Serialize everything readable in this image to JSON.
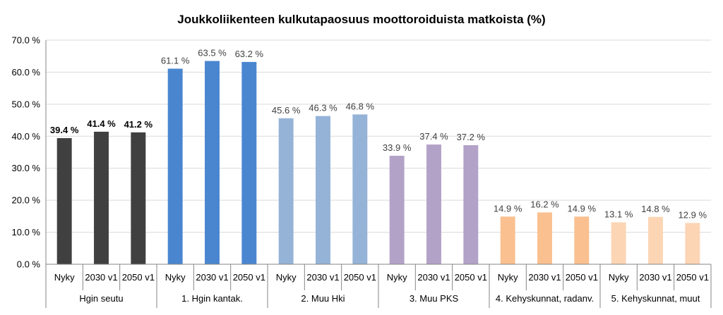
{
  "chart_data": {
    "type": "bar",
    "title": "Joukkoliikenteen kulkutapaosuus moottoroiduista matkoista (%)",
    "xlabel": "",
    "ylabel": "",
    "ylim": [
      0,
      70
    ],
    "yticks": [
      "0.0 %",
      "10.0 %",
      "20.0 %",
      "30.0 %",
      "40.0 %",
      "50.0 %",
      "60.0 %",
      "70.0 %"
    ],
    "grid": true,
    "legend": "none",
    "groups": [
      {
        "name": "Hgin seutu",
        "color": "#404040",
        "bold_labels": true,
        "bars": [
          {
            "category": "Nyky",
            "value": 39.4,
            "label": "39.4 %"
          },
          {
            "category": "2030 v1",
            "value": 41.4,
            "label": "41.4 %"
          },
          {
            "category": "2050 v1",
            "value": 41.2,
            "label": "41.2 %"
          }
        ]
      },
      {
        "name": "1. Hgin kantak.",
        "color": "#4a86d0",
        "bold_labels": false,
        "bars": [
          {
            "category": "Nyky",
            "value": 61.1,
            "label": "61.1 %"
          },
          {
            "category": "2030 v1",
            "value": 63.5,
            "label": "63.5 %"
          },
          {
            "category": "2050 v1",
            "value": 63.2,
            "label": "63.2 %"
          }
        ]
      },
      {
        "name": "2. Muu Hki",
        "color": "#95b3d7",
        "bold_labels": false,
        "bars": [
          {
            "category": "Nyky",
            "value": 45.6,
            "label": "45.6 %"
          },
          {
            "category": "2030 v1",
            "value": 46.3,
            "label": "46.3 %"
          },
          {
            "category": "2050 v1",
            "value": 46.8,
            "label": "46.8 %"
          }
        ]
      },
      {
        "name": "3. Muu PKS",
        "color": "#b3a2c7",
        "bold_labels": false,
        "bars": [
          {
            "category": "Nyky",
            "value": 33.9,
            "label": "33.9 %"
          },
          {
            "category": "2030 v1",
            "value": 37.4,
            "label": "37.4 %"
          },
          {
            "category": "2050 v1",
            "value": 37.2,
            "label": "37.2 %"
          }
        ]
      },
      {
        "name": "4. Kehyskunnat, radanv.",
        "color": "#fac090",
        "bold_labels": false,
        "bars": [
          {
            "category": "Nyky",
            "value": 14.9,
            "label": "14.9 %"
          },
          {
            "category": "2030 v1",
            "value": 16.2,
            "label": "16.2 %"
          },
          {
            "category": "2050 v1",
            "value": 14.9,
            "label": "14.9 %"
          }
        ]
      },
      {
        "name": "5. Kehyskunnat, muut",
        "color": "#fcd5b5",
        "bold_labels": false,
        "bars": [
          {
            "category": "Nyky",
            "value": 13.1,
            "label": "13.1 %"
          },
          {
            "category": "2030 v1",
            "value": 14.8,
            "label": "14.8 %"
          },
          {
            "category": "2050 v1",
            "value": 12.9,
            "label": "12.9 %"
          }
        ]
      }
    ]
  },
  "colors": {
    "gridline": "#d9d9d9",
    "axis": "#868686",
    "text": "#000000",
    "label_text": "#404040"
  }
}
